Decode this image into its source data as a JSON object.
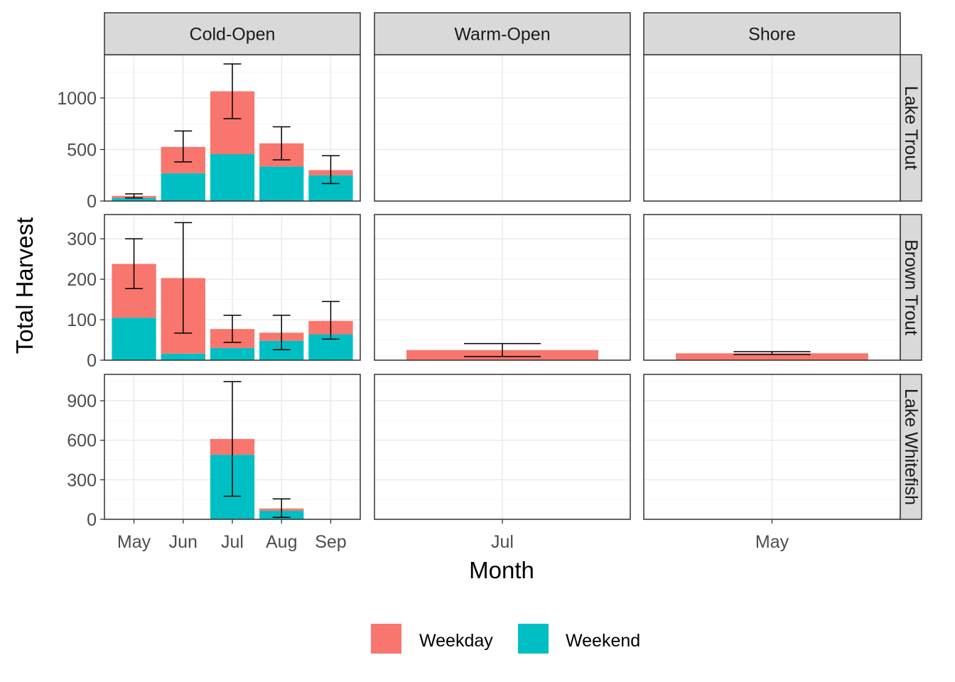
{
  "chart_data": {
    "type": "bar",
    "stacked": true,
    "xlabel": "Month",
    "ylabel": "Total Harvest",
    "column_facets": [
      "Cold-Open",
      "Warm-Open",
      "Shore"
    ],
    "row_facets": [
      "Lake Trout",
      "Brown Trout",
      "Lake Whitefish"
    ],
    "x_scales": {
      "Cold-Open": [
        "May",
        "Jun",
        "Jul",
        "Aug",
        "Sep"
      ],
      "Warm-Open": [
        "Jul"
      ],
      "Shore": [
        "May"
      ]
    },
    "y_scales": {
      "Lake Trout": {
        "ylim": [
          0,
          1420
        ],
        "ticks": [
          0,
          500,
          1000
        ]
      },
      "Brown Trout": {
        "ylim": [
          0,
          360
        ],
        "ticks": [
          0,
          100,
          200,
          300
        ]
      },
      "Lake Whitefish": {
        "ylim": [
          0,
          1100
        ],
        "ticks": [
          0,
          300,
          600,
          900
        ]
      }
    },
    "legend": {
      "position": "bottom",
      "entries": [
        {
          "name": "Weekday",
          "color": "#F8766D"
        },
        {
          "name": "Weekend",
          "color": "#00BFC4"
        }
      ]
    },
    "grid": true,
    "panels": [
      {
        "column": "Cold-Open",
        "row": "Lake Trout",
        "bars": [
          {
            "x": "May",
            "weekend": 30,
            "weekday": 20,
            "total": 50,
            "err": [
              30,
              70
            ]
          },
          {
            "x": "Jun",
            "weekend": 270,
            "weekday": 255,
            "total": 525,
            "err": [
              380,
              680
            ]
          },
          {
            "x": "Jul",
            "weekend": 455,
            "weekday": 610,
            "total": 1065,
            "err": [
              800,
              1330
            ]
          },
          {
            "x": "Aug",
            "weekend": 335,
            "weekday": 225,
            "total": 560,
            "err": [
              400,
              720
            ]
          },
          {
            "x": "Sep",
            "weekend": 250,
            "weekday": 50,
            "total": 300,
            "err": [
              170,
              440
            ]
          }
        ]
      },
      {
        "column": "Warm-Open",
        "row": "Lake Trout",
        "bars": []
      },
      {
        "column": "Shore",
        "row": "Lake Trout",
        "bars": []
      },
      {
        "column": "Cold-Open",
        "row": "Brown Trout",
        "bars": [
          {
            "x": "May",
            "weekend": 105,
            "weekday": 133,
            "total": 238,
            "err": [
              177,
              300
            ]
          },
          {
            "x": "Jun",
            "weekend": 16,
            "weekday": 187,
            "total": 203,
            "err": [
              67,
              340
            ]
          },
          {
            "x": "Jul",
            "weekend": 30,
            "weekday": 47,
            "total": 77,
            "err": [
              44,
              111
            ]
          },
          {
            "x": "Aug",
            "weekend": 48,
            "weekday": 20,
            "total": 68,
            "err": [
              26,
              111
            ]
          },
          {
            "x": "Sep",
            "weekend": 64,
            "weekday": 33,
            "total": 97,
            "err": [
              52,
              145
            ]
          }
        ]
      },
      {
        "column": "Warm-Open",
        "row": "Brown Trout",
        "bars": [
          {
            "x": "Jul",
            "weekend": 0,
            "weekday": 25,
            "total": 25,
            "err": [
              9,
              41
            ]
          }
        ]
      },
      {
        "column": "Shore",
        "row": "Brown Trout",
        "bars": [
          {
            "x": "May",
            "weekend": 0,
            "weekday": 17,
            "total": 17,
            "err": [
              14,
              21
            ]
          }
        ]
      },
      {
        "column": "Cold-Open",
        "row": "Lake Whitefish",
        "bars": [
          {
            "x": "Jul",
            "weekend": 490,
            "weekday": 120,
            "total": 610,
            "err": [
              175,
              1045
            ]
          },
          {
            "x": "Aug",
            "weekend": 65,
            "weekday": 17,
            "total": 82,
            "err": [
              15,
              155
            ]
          }
        ]
      },
      {
        "column": "Warm-Open",
        "row": "Lake Whitefish",
        "bars": []
      },
      {
        "column": "Shore",
        "row": "Lake Whitefish",
        "bars": []
      }
    ]
  }
}
